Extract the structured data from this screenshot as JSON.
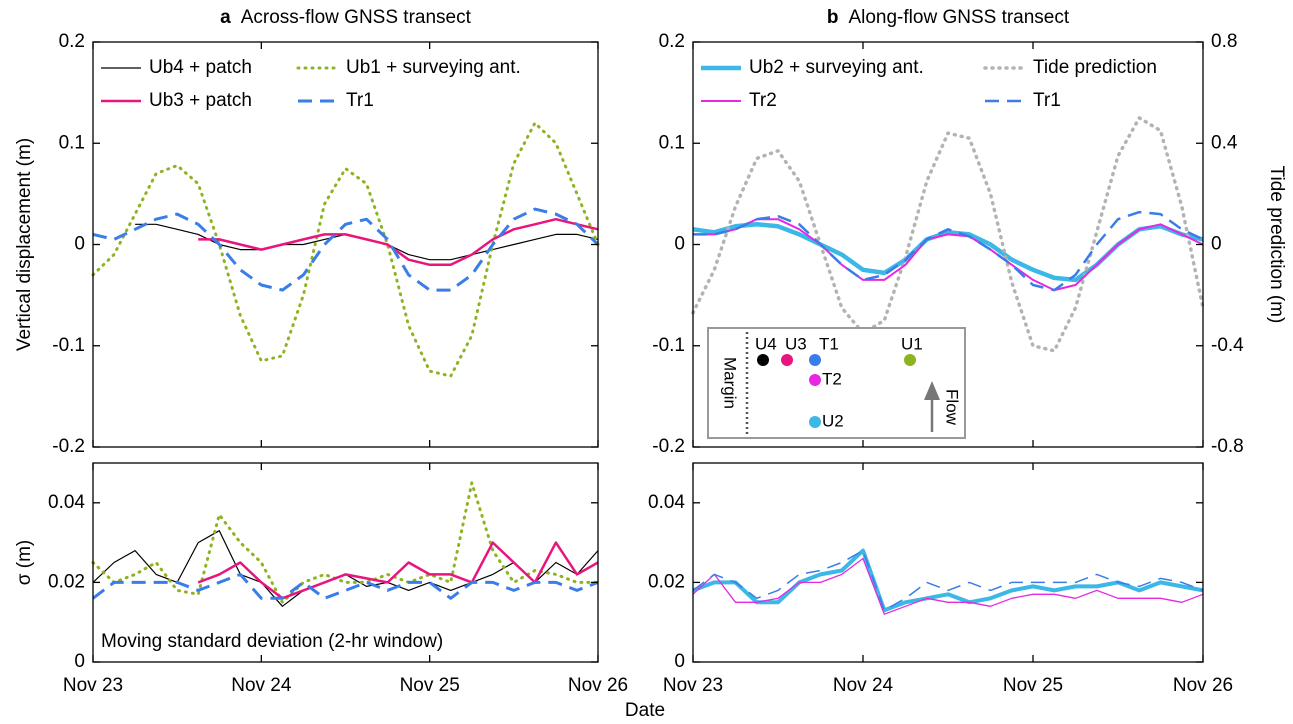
{
  "figure": {
    "xlabel": "Date"
  },
  "chart_data": [
    {
      "type": "line",
      "panel_label": "a",
      "title": "Across-flow GNSS transect",
      "ylabel": "Vertical displacement (m)",
      "x": [
        0,
        0.125,
        0.25,
        0.375,
        0.5,
        0.625,
        0.75,
        0.875,
        1,
        1.125,
        1.25,
        1.375,
        1.5,
        1.625,
        1.75,
        1.875,
        2,
        2.125,
        2.25,
        2.375,
        2.5,
        2.625,
        2.75,
        2.875,
        3
      ],
      "xlim": [
        0,
        3
      ],
      "xticks": [
        0,
        1,
        2,
        3
      ],
      "ylim": [
        -0.2,
        0.2
      ],
      "yticks": [
        -0.2,
        -0.1,
        0,
        0.1,
        0.2
      ],
      "legend": true,
      "series": [
        {
          "name": "Ub4 + patch",
          "color": "#000000",
          "dash": "solid",
          "width": 1.2,
          "values": [
            null,
            null,
            0.02,
            0.02,
            0.015,
            0.01,
            0.0,
            -0.005,
            -0.005,
            0.0,
            0.0,
            0.005,
            0.01,
            0.005,
            0.0,
            -0.01,
            -0.015,
            -0.015,
            -0.01,
            -0.005,
            0.0,
            0.005,
            0.01,
            0.01,
            0.005
          ]
        },
        {
          "name": "Ub1 + surveying ant.",
          "color": "#8db320",
          "dash": "dotted",
          "width": 3,
          "values": [
            -0.03,
            -0.01,
            0.03,
            0.07,
            0.078,
            0.06,
            0.0,
            -0.07,
            -0.115,
            -0.11,
            -0.05,
            0.04,
            0.075,
            0.06,
            0.0,
            -0.08,
            -0.125,
            -0.13,
            -0.09,
            0.0,
            0.08,
            0.12,
            0.1,
            0.05,
            0.0
          ]
        },
        {
          "name": "Ub3 + patch",
          "color": "#e8157f",
          "dash": "solid",
          "width": 2.5,
          "values": [
            null,
            null,
            null,
            null,
            null,
            0.005,
            0.005,
            0.0,
            -0.005,
            0.0,
            0.005,
            0.01,
            0.01,
            0.005,
            0.0,
            -0.015,
            -0.02,
            -0.02,
            -0.01,
            0.005,
            0.015,
            0.02,
            0.025,
            0.02,
            0.015
          ]
        },
        {
          "name": "Tr1",
          "color": "#3a7de8",
          "dash": "dashed",
          "width": 3,
          "values": [
            0.01,
            0.005,
            0.015,
            0.025,
            0.03,
            0.02,
            0.0,
            -0.025,
            -0.04,
            -0.045,
            -0.03,
            0.0,
            0.02,
            0.025,
            0.005,
            -0.03,
            -0.045,
            -0.045,
            -0.03,
            0.0,
            0.025,
            0.035,
            0.03,
            0.02,
            0.0
          ]
        }
      ]
    },
    {
      "type": "line",
      "ylabel": "σ (m)",
      "annotation": "Moving standard deviation (2-hr window)",
      "x": [
        0,
        0.125,
        0.25,
        0.375,
        0.5,
        0.625,
        0.75,
        0.875,
        1,
        1.125,
        1.25,
        1.375,
        1.5,
        1.625,
        1.75,
        1.875,
        2,
        2.125,
        2.25,
        2.375,
        2.5,
        2.625,
        2.75,
        2.875,
        3
      ],
      "xlim": [
        0,
        3
      ],
      "xticks": [
        {
          "value": 0,
          "label": "Nov 23"
        },
        {
          "value": 1,
          "label": "Nov 24"
        },
        {
          "value": 2,
          "label": "Nov 25"
        },
        {
          "value": 3,
          "label": "Nov 26"
        }
      ],
      "ylim": [
        0,
        0.05
      ],
      "yticks": [
        0,
        0.02,
        0.04
      ],
      "legend": false,
      "series": [
        {
          "color": "#000000",
          "dash": "solid",
          "width": 1.2,
          "values": [
            0.02,
            0.025,
            0.028,
            0.022,
            0.02,
            0.03,
            0.033,
            0.022,
            0.02,
            0.014,
            0.018,
            0.02,
            0.022,
            0.019,
            0.02,
            0.018,
            0.02,
            0.018,
            0.02,
            0.022,
            0.025,
            0.02,
            0.025,
            0.022,
            0.028
          ]
        },
        {
          "color": "#8db320",
          "dash": "dotted",
          "width": 3,
          "values": [
            0.025,
            0.02,
            0.022,
            0.025,
            0.018,
            0.017,
            0.037,
            0.03,
            0.025,
            0.015,
            0.02,
            0.022,
            0.02,
            0.02,
            0.022,
            0.02,
            0.022,
            0.02,
            0.045,
            0.028,
            0.02,
            0.023,
            0.022,
            0.02,
            0.02
          ]
        },
        {
          "color": "#e8157f",
          "dash": "solid",
          "width": 2.5,
          "values": [
            null,
            null,
            null,
            null,
            null,
            0.02,
            0.022,
            0.025,
            0.02,
            0.016,
            0.018,
            0.02,
            0.022,
            0.021,
            0.02,
            0.025,
            0.022,
            0.022,
            0.02,
            0.03,
            0.025,
            0.02,
            0.03,
            0.022,
            0.025
          ]
        },
        {
          "color": "#3a7de8",
          "dash": "dashed",
          "width": 3,
          "values": [
            0.016,
            0.02,
            0.02,
            0.02,
            0.02,
            0.018,
            0.02,
            0.022,
            0.016,
            0.016,
            0.02,
            0.016,
            0.018,
            0.02,
            0.018,
            0.02,
            0.02,
            0.016,
            0.02,
            0.02,
            0.018,
            0.02,
            0.02,
            0.018,
            0.02
          ]
        }
      ]
    },
    {
      "type": "line",
      "panel_label": "b",
      "title": "Along-flow GNSS transect",
      "y2label": "Tide prediction (m)",
      "x": [
        0,
        0.125,
        0.25,
        0.375,
        0.5,
        0.625,
        0.75,
        0.875,
        1,
        1.125,
        1.25,
        1.375,
        1.5,
        1.625,
        1.75,
        1.875,
        2,
        2.125,
        2.25,
        2.375,
        2.5,
        2.625,
        2.75,
        2.875,
        3
      ],
      "xlim": [
        0,
        3
      ],
      "xticks": [
        0,
        1,
        2,
        3
      ],
      "ylim": [
        -0.2,
        0.2
      ],
      "yticks": [
        -0.2,
        -0.1,
        0,
        0.1,
        0.2
      ],
      "y2lim": [
        -0.8,
        0.8
      ],
      "y2ticks": [
        -0.8,
        -0.4,
        0,
        0.4,
        0.8
      ],
      "legend": true,
      "series": [
        {
          "name": "Ub2 + surveying ant.",
          "color": "#3bb8e6",
          "dash": "solid",
          "width": 4.5,
          "values": [
            0.015,
            0.012,
            0.018,
            0.02,
            0.018,
            0.01,
            0.0,
            -0.01,
            -0.025,
            -0.028,
            -0.015,
            0.005,
            0.012,
            0.01,
            0.0,
            -0.015,
            -0.025,
            -0.033,
            -0.035,
            -0.02,
            0.0,
            0.015,
            0.018,
            0.01,
            0.005
          ]
        },
        {
          "name": "Tide prediction",
          "color": "#b3b3b3",
          "dash": "dotted",
          "width": 3.5,
          "axis": "y2",
          "values": [
            -0.27,
            -0.1,
            0.15,
            0.34,
            0.37,
            0.25,
            0.0,
            -0.25,
            -0.35,
            -0.3,
            -0.05,
            0.25,
            0.44,
            0.42,
            0.2,
            -0.15,
            -0.4,
            -0.42,
            -0.25,
            0.05,
            0.35,
            0.5,
            0.45,
            0.15,
            -0.25
          ]
        },
        {
          "name": "Tr2",
          "color": "#e629e0",
          "dash": "solid",
          "width": 2,
          "values": [
            0.01,
            0.01,
            0.015,
            0.025,
            0.025,
            0.015,
            0.0,
            -0.02,
            -0.035,
            -0.035,
            -0.02,
            0.005,
            0.01,
            0.008,
            -0.005,
            -0.02,
            -0.035,
            -0.045,
            -0.04,
            -0.02,
            0.0,
            0.015,
            0.02,
            0.01,
            0.0
          ]
        },
        {
          "name": "Tr1",
          "color": "#3a7de8",
          "dash": "dashed",
          "width": 2.5,
          "values": [
            0.01,
            0.01,
            0.015,
            0.025,
            0.028,
            0.02,
            0.0,
            -0.02,
            -0.035,
            -0.03,
            -0.015,
            0.005,
            0.015,
            0.008,
            -0.005,
            -0.02,
            -0.04,
            -0.045,
            -0.03,
            0.0,
            0.025,
            0.032,
            0.03,
            0.015,
            0.005
          ]
        }
      ],
      "inset": {
        "margin_label": "Margin",
        "flow_label": "Flow",
        "points": [
          {
            "label": "U4",
            "color": "#000000"
          },
          {
            "label": "U3",
            "color": "#e8157f"
          },
          {
            "label": "T1",
            "color": "#3a7de8"
          },
          {
            "label": "T2",
            "color": "#e629e0"
          },
          {
            "label": "U1",
            "color": "#8db320"
          },
          {
            "label": "U2",
            "color": "#3bb8e6"
          }
        ]
      }
    },
    {
      "type": "line",
      "x": [
        0,
        0.125,
        0.25,
        0.375,
        0.5,
        0.625,
        0.75,
        0.875,
        1,
        1.125,
        1.25,
        1.375,
        1.5,
        1.625,
        1.75,
        1.875,
        2,
        2.125,
        2.25,
        2.375,
        2.5,
        2.625,
        2.75,
        2.875,
        3
      ],
      "xlim": [
        0,
        3
      ],
      "xticks": [
        {
          "value": 0,
          "label": "Nov 23"
        },
        {
          "value": 1,
          "label": "Nov 24"
        },
        {
          "value": 2,
          "label": "Nov 25"
        },
        {
          "value": 3,
          "label": "Nov 26"
        }
      ],
      "ylim": [
        0,
        0.05
      ],
      "yticks": [
        0,
        0.02,
        0.04
      ],
      "legend": false,
      "series": [
        {
          "color": "#3bb8e6",
          "dash": "solid",
          "width": 4,
          "values": [
            0.018,
            0.02,
            0.02,
            0.015,
            0.015,
            0.02,
            0.022,
            0.023,
            0.028,
            0.013,
            0.015,
            0.016,
            0.017,
            0.015,
            0.016,
            0.018,
            0.019,
            0.018,
            0.019,
            0.019,
            0.02,
            0.018,
            0.02,
            0.019,
            0.018
          ]
        },
        {
          "color": "#e629e0",
          "dash": "solid",
          "width": 1.3,
          "values": [
            0.017,
            0.022,
            0.015,
            0.015,
            0.016,
            0.02,
            0.02,
            0.022,
            0.026,
            0.012,
            0.014,
            0.016,
            0.015,
            0.015,
            0.014,
            0.016,
            0.017,
            0.017,
            0.016,
            0.018,
            0.016,
            0.016,
            0.016,
            0.015,
            0.017
          ]
        },
        {
          "color": "#3a7de8",
          "dash": "dashed",
          "width": 1.5,
          "values": [
            0.018,
            0.022,
            0.02,
            0.016,
            0.018,
            0.022,
            0.023,
            0.025,
            0.028,
            0.013,
            0.016,
            0.02,
            0.018,
            0.02,
            0.018,
            0.02,
            0.02,
            0.02,
            0.02,
            0.022,
            0.02,
            0.019,
            0.021,
            0.02,
            0.018
          ]
        }
      ]
    }
  ]
}
